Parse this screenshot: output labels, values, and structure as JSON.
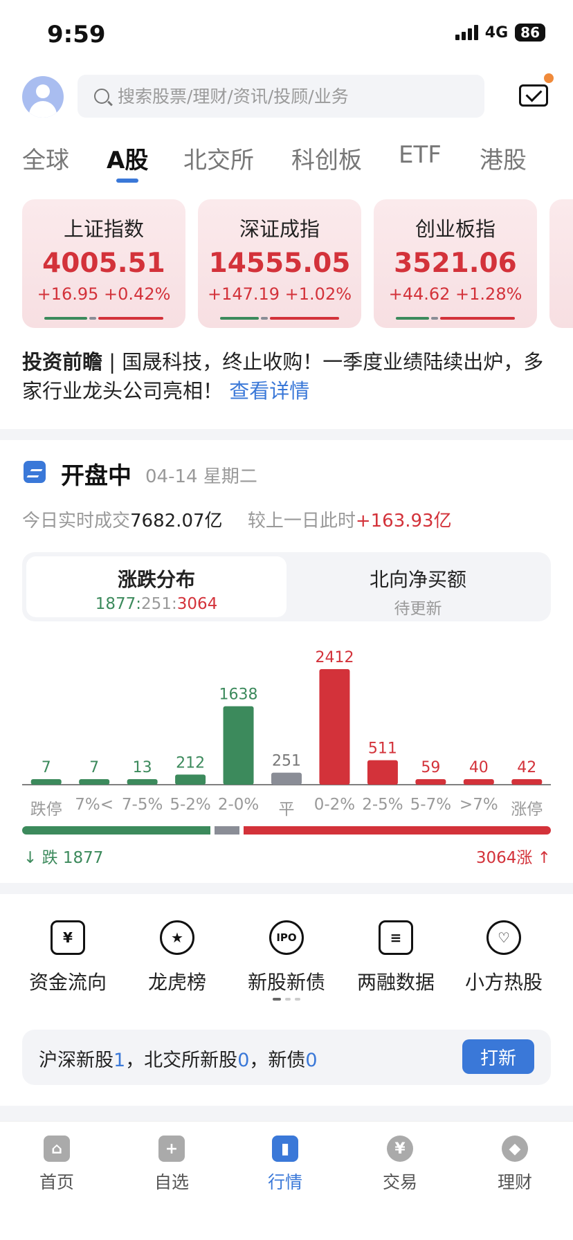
{
  "status": {
    "time": "9:59",
    "network": "4G",
    "battery": "86"
  },
  "header": {
    "search_placeholder": "搜索股票/理财/资讯/投顾/业务"
  },
  "tabs": [
    {
      "label": "全球"
    },
    {
      "label": "A股"
    },
    {
      "label": "北交所"
    },
    {
      "label": "科创板"
    },
    {
      "label": "ETF"
    },
    {
      "label": "港股"
    }
  ],
  "indices": [
    {
      "name": "上证指数",
      "value": "4005.51",
      "change": "+16.95 +0.42%"
    },
    {
      "name": "深证成指",
      "value": "14555.05",
      "change": "+147.19 +1.02%"
    },
    {
      "name": "创业板指",
      "value": "3521.06",
      "change": "+44.62 +1.28%"
    }
  ],
  "news": {
    "tag": "投资前瞻",
    "separator": "|",
    "text": "国晟科技，终止收购！一季度业绩陆续出炉，多家行业龙头公司亮相！",
    "link": "查看详情"
  },
  "market": {
    "title": "开盘中",
    "date": "04-14 星期二",
    "volume_label": "今日实时成交",
    "volume_value": "7682.07亿",
    "compare_label": "较上一日此时",
    "compare_value": "+163.93亿",
    "segments": {
      "dist_title": "涨跌分布",
      "dist_down": "1877",
      "dist_flat": "251",
      "dist_up": "3064",
      "dist_sep": ":",
      "north_title": "北向净买额",
      "north_sub": "待更新"
    },
    "fall_label": "跌",
    "fall_count": "1877",
    "rise_label": "涨",
    "rise_count": "3064"
  },
  "chart_data": {
    "type": "bar",
    "categories": [
      "跌停",
      "7%<",
      "7-5%",
      "5-2%",
      "2-0%",
      "平",
      "0-2%",
      "2-5%",
      "5-7%",
      ">7%",
      "涨停"
    ],
    "values": [
      7,
      7,
      13,
      212,
      1638,
      251,
      2412,
      511,
      59,
      40,
      42
    ],
    "colors": [
      "#3c8a5c",
      "#3c8a5c",
      "#3c8a5c",
      "#3c8a5c",
      "#3c8a5c",
      "#8a8d96",
      "#d3323a",
      "#d3323a",
      "#d3323a",
      "#d3323a",
      "#d3323a"
    ],
    "ylim": [
      0,
      2600
    ]
  },
  "shortcuts": [
    {
      "label": "资金流向",
      "icon": "fund-flow-icon",
      "glyph": "¥"
    },
    {
      "label": "龙虎榜",
      "icon": "medal-icon",
      "glyph": "★"
    },
    {
      "label": "新股新债",
      "icon": "ipo-icon",
      "glyph": "IPO"
    },
    {
      "label": "两融数据",
      "icon": "margin-data-icon",
      "glyph": "≡"
    },
    {
      "label": "小方热股",
      "icon": "hot-stock-icon",
      "glyph": "♡"
    }
  ],
  "ipo_bar": {
    "t1": "沪深新股",
    "n1": "1",
    "t2": "，北交所新股",
    "n2": "0",
    "t3": "，新债",
    "n3": "0",
    "button": "打新"
  },
  "nav": [
    {
      "label": "首页",
      "icon": "home-icon",
      "glyph": "⌂"
    },
    {
      "label": "自选",
      "icon": "watchlist-icon",
      "glyph": "+"
    },
    {
      "label": "行情",
      "icon": "market-icon",
      "glyph": "▮"
    },
    {
      "label": "交易",
      "icon": "trade-icon",
      "glyph": "¥"
    },
    {
      "label": "理财",
      "icon": "wealth-icon",
      "glyph": "◆"
    }
  ],
  "colors": {
    "accent": "#3a78d8",
    "up": "#d3323a",
    "down": "#3c8a5c",
    "flat": "#8a8d96"
  }
}
